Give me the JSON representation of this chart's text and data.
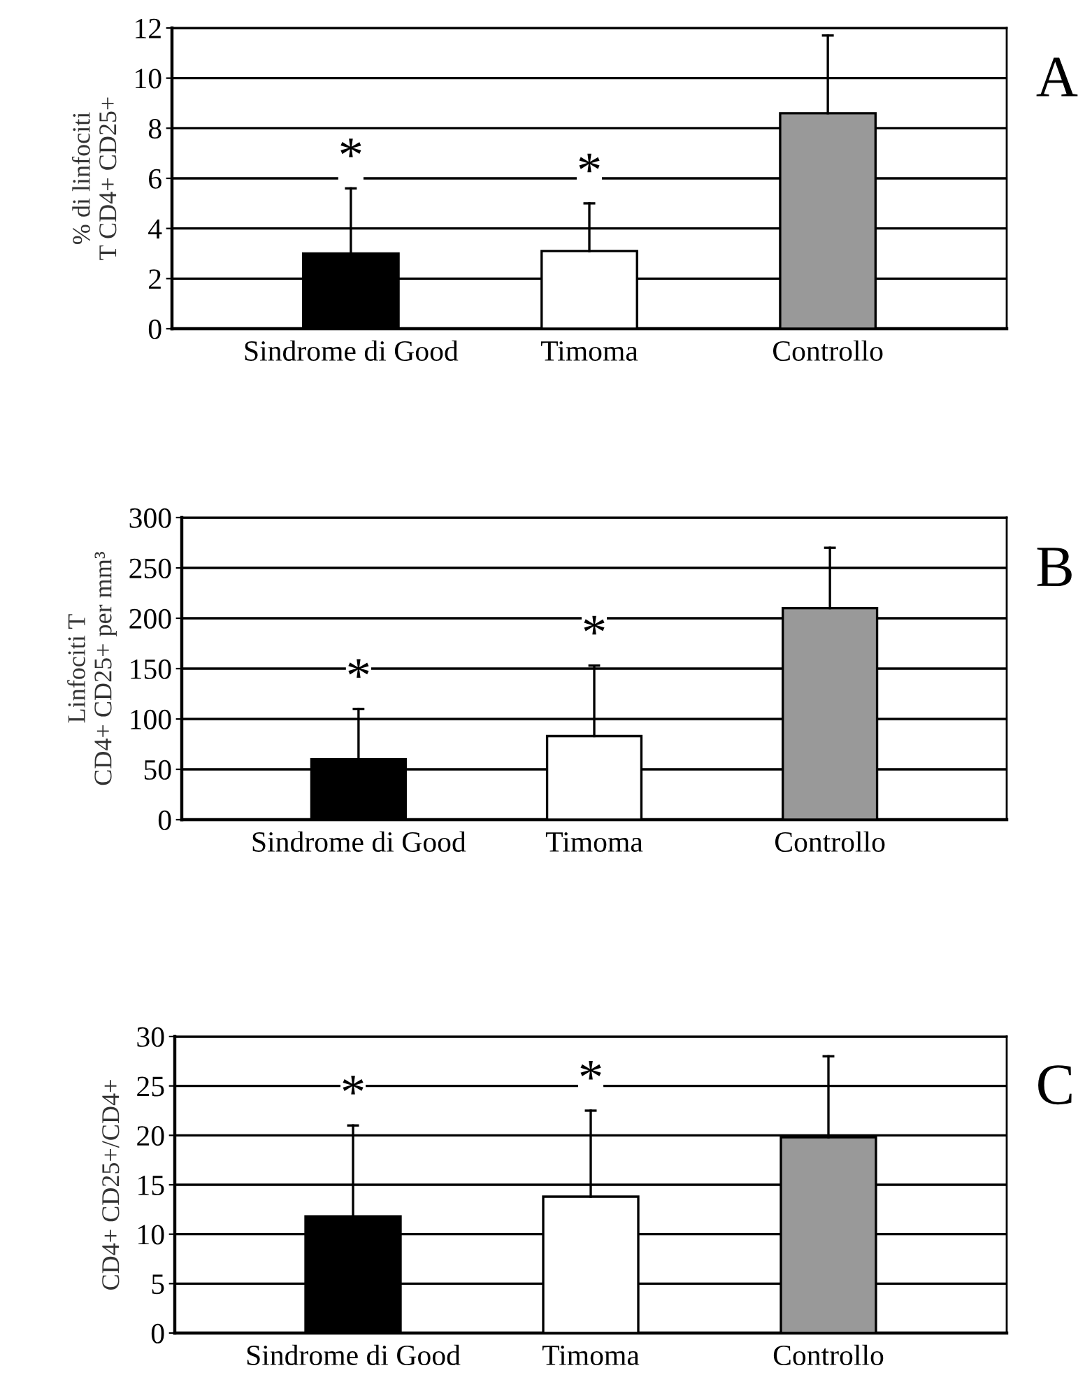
{
  "chart_data": [
    {
      "type": "bar",
      "ylabel": "% di linfociti\nT CD4+ CD25+",
      "categories": [
        "Sindrome di Good",
        "Timoma",
        "Controllo"
      ],
      "values": [
        3.0,
        3.1,
        8.6
      ],
      "colors": [
        "#000000",
        "#ffffff",
        "#999999"
      ],
      "errors": [
        [
          3.0,
          5.6
        ],
        [
          3.1,
          5.0
        ],
        [
          8.6,
          11.7
        ]
      ],
      "ylim": [
        0,
        12
      ],
      "yticks": [
        0,
        2,
        4,
        6,
        8,
        10,
        12
      ],
      "grid": "y",
      "annotations": [
        "A",
        {
          "text": "*",
          "x": "Sindrome di Good",
          "y": 5.6
        },
        {
          "text": "*",
          "x": "Timoma",
          "y": 5.0
        }
      ]
    },
    {
      "type": "bar",
      "ylabel": "Linfociti T\nCD4+ CD25+ per mm³",
      "categories": [
        "Sindrome di Good",
        "Timoma",
        "Controllo"
      ],
      "values": [
        60,
        83,
        210
      ],
      "colors": [
        "#000000",
        "#ffffff",
        "#999999"
      ],
      "errors": [
        [
          60,
          110
        ],
        [
          83,
          153
        ],
        [
          210,
          270
        ]
      ],
      "ylim": [
        0,
        300
      ],
      "yticks": [
        0,
        50,
        100,
        150,
        200,
        250,
        300
      ],
      "grid": "y",
      "annotations": [
        "B",
        {
          "text": "*",
          "x": "Sindrome di Good",
          "y": 110
        },
        {
          "text": "*",
          "x": "Timoma",
          "y": 153
        }
      ]
    },
    {
      "type": "bar",
      "ylabel": "CD4+ CD25+/CD4+",
      "categories": [
        "Sindrome di Good",
        "Timoma",
        "Controllo"
      ],
      "values": [
        11.8,
        13.8,
        19.8
      ],
      "colors": [
        "#000000",
        "#ffffff",
        "#999999"
      ],
      "errors": [
        [
          11.8,
          21
        ],
        [
          13.8,
          22.5
        ],
        [
          19.8,
          28
        ]
      ],
      "ylim": [
        0,
        30
      ],
      "yticks": [
        0,
        5,
        10,
        15,
        20,
        25,
        30
      ],
      "grid": "y",
      "annotations": [
        "C",
        {
          "text": "*",
          "x": "Sindrome di Good",
          "y": 21
        },
        {
          "text": "*",
          "x": "Timoma",
          "y": 22.5
        }
      ]
    }
  ]
}
